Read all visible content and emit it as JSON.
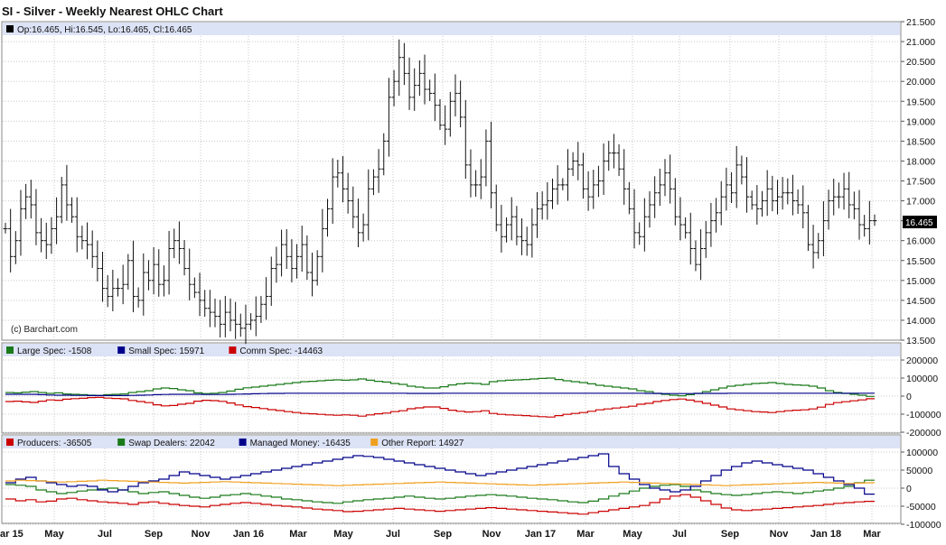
{
  "title": "SI - Silver - Weekly Nearest OHLC Chart",
  "watermark": "(c) Barchart.com",
  "ohlc_legend": "Op:16.465, Hi:16.545, Lo:16.465, Cl:16.465",
  "last_price_label": "16.465",
  "cot_legend": [
    {
      "label": "Large Spec: -1508",
      "color": "#1a7a1a"
    },
    {
      "label": "Small Spec: 15971",
      "color": "#00008b"
    },
    {
      "label": "Comm Spec: -14463",
      "color": "#cc0000"
    }
  ],
  "disagg_legend": [
    {
      "label": "Producers: -36505",
      "color": "#cc0000"
    },
    {
      "label": "Swap Dealers: 22042",
      "color": "#1a7a1a"
    },
    {
      "label": "Managed Money: -16435",
      "color": "#00008b"
    },
    {
      "label": "Other Report: 14927",
      "color": "#f0a020"
    }
  ],
  "x_ticks": [
    "ar 15",
    "May",
    "Jul",
    "Sep",
    "Nov",
    "Jan 16",
    "Mar",
    "May",
    "Jul",
    "Sep",
    "Nov",
    "Jan 17",
    "Mar",
    "May",
    "Jul",
    "Sep",
    "Nov",
    "Jan 18",
    "Mar"
  ],
  "price_ticks": [
    "21.500",
    "21.000",
    "20.500",
    "20.000",
    "19.500",
    "19.000",
    "18.500",
    "18.000",
    "17.500",
    "17.000",
    "16.500",
    "16.000",
    "15.500",
    "15.000",
    "14.500",
    "14.000",
    "13.500"
  ],
  "cot_ticks": [
    "200000",
    "100000",
    "0",
    "-100000",
    "-200000"
  ],
  "disagg_ticks": [
    "100000",
    "50000",
    "0",
    "-50000",
    "-100000"
  ],
  "chart_data": [
    {
      "type": "ohlc",
      "title": "SI - Silver - Weekly Nearest OHLC Chart",
      "x_range": [
        "2015-03",
        "2018-03"
      ],
      "ylim": [
        13.5,
        21.5
      ],
      "close": [
        16.3,
        15.6,
        16.0,
        16.8,
        17.1,
        16.9,
        16.2,
        16.0,
        15.9,
        16.3,
        16.6,
        17.4,
        16.9,
        16.6,
        16.1,
        16.0,
        15.9,
        15.6,
        15.3,
        14.8,
        14.6,
        14.8,
        14.8,
        14.9,
        15.5,
        14.6,
        14.5,
        15.2,
        15.0,
        15.4,
        14.9,
        15.0,
        15.8,
        16.0,
        15.8,
        15.3,
        14.9,
        14.7,
        14.5,
        14.3,
        14.2,
        14.1,
        13.9,
        14.2,
        14.0,
        13.9,
        13.8,
        13.9,
        14.0,
        14.1,
        14.4,
        14.6,
        15.3,
        15.4,
        15.9,
        15.6,
        15.3,
        15.6,
        15.9,
        15.2,
        15.0,
        15.6,
        16.3,
        16.8,
        17.6,
        17.7,
        17.3,
        17.0,
        16.6,
        16.2,
        16.4,
        17.3,
        17.6,
        17.8,
        18.5,
        19.6,
        20.0,
        20.6,
        20.2,
        19.6,
        19.9,
        20.2,
        19.8,
        19.7,
        19.4,
        18.9,
        18.8,
        19.5,
        19.7,
        19.1,
        17.9,
        17.4,
        17.4,
        17.6,
        18.5,
        17.2,
        16.4,
        16.1,
        16.4,
        16.6,
        16.1,
        16.0,
        15.9,
        16.4,
        16.8,
        16.9,
        17.0,
        17.3,
        17.4,
        17.4,
        17.8,
        18.0,
        17.9,
        17.3,
        17.1,
        17.4,
        17.5,
        18.0,
        18.2,
        18.2,
        17.8,
        17.3,
        16.8,
        16.2,
        16.1,
        16.6,
        16.9,
        17.2,
        17.4,
        17.7,
        17.3,
        16.6,
        16.4,
        16.2,
        15.8,
        15.4,
        15.8,
        16.2,
        16.5,
        16.7,
        17.1,
        17.4,
        17.2,
        17.9,
        17.6,
        17.1,
        16.9,
        16.8,
        17.0,
        17.3,
        17.0,
        17.1,
        17.2,
        17.2,
        17.0,
        16.9,
        16.7,
        15.9,
        15.7,
        16.0,
        16.5,
        17.0,
        17.1,
        17.1,
        17.3,
        16.9,
        16.8,
        16.4,
        16.3,
        16.5,
        16.5
      ]
    },
    {
      "type": "line",
      "title": "Commitments of Traders",
      "ylim": [
        -200000,
        200000
      ],
      "series": [
        {
          "name": "Large Spec",
          "color": "#1a7a1a",
          "values": [
            20000,
            18000,
            22000,
            25000,
            20000,
            15000,
            18000,
            12000,
            10000,
            8000,
            5000,
            4000,
            8000,
            10000,
            12000,
            20000,
            25000,
            30000,
            40000,
            45000,
            42000,
            35000,
            30000,
            18000,
            14000,
            16000,
            20000,
            28000,
            38000,
            46000,
            50000,
            55000,
            60000,
            65000,
            70000,
            75000,
            80000,
            82000,
            85000,
            88000,
            90000,
            88000,
            90000,
            95000,
            88000,
            82000,
            78000,
            70000,
            65000,
            55000,
            50000,
            45000,
            45000,
            52000,
            62000,
            68000,
            72000,
            70000,
            65000,
            80000,
            85000,
            88000,
            90000,
            92000,
            95000,
            98000,
            100000,
            92000,
            85000,
            80000,
            75000,
            68000,
            60000,
            55000,
            50000,
            45000,
            40000,
            30000,
            25000,
            15000,
            10000,
            5000,
            2000,
            8000,
            15000,
            25000,
            35000,
            45000,
            55000,
            60000,
            65000,
            70000,
            72000,
            75000,
            70000,
            65000,
            62000,
            60000,
            55000,
            45000,
            30000,
            20000,
            15000,
            10000,
            5000,
            -1508
          ]
        },
        {
          "name": "Small Spec",
          "color": "#00008b",
          "values": [
            10000,
            10000,
            10000,
            10000,
            8000,
            6000,
            5000,
            5000,
            4000,
            4000,
            3000,
            3000,
            3000,
            3000,
            3000,
            4000,
            5000,
            6000,
            8000,
            9000,
            10000,
            10000,
            10000,
            10000,
            9000,
            9000,
            9000,
            10000,
            11000,
            12000,
            13000,
            14000,
            15000,
            15000,
            16000,
            16000,
            16000,
            16000,
            16000,
            16000,
            16000,
            16000,
            16000,
            16000,
            16000,
            16000,
            16000,
            16000,
            16000,
            15000,
            15000,
            15000,
            15000,
            16000,
            16000,
            16000,
            16000,
            16000,
            16000,
            16000,
            16000,
            16000,
            16000,
            16000,
            16000,
            16000,
            16000,
            16000,
            16000,
            16000,
            16000,
            16000,
            16000,
            16000,
            16000,
            16000,
            16000,
            16000,
            15000,
            15000,
            14000,
            14000,
            14000,
            14000,
            15000,
            15000,
            15000,
            15000,
            16000,
            16000,
            16000,
            16000,
            16000,
            16000,
            16000,
            16000,
            16000,
            16000,
            16000,
            16000,
            16000,
            16000,
            16000,
            16000,
            16000,
            15971
          ]
        },
        {
          "name": "Comm Spec",
          "color": "#cc0000",
          "values": [
            -30000,
            -28000,
            -32000,
            -35000,
            -28000,
            -21000,
            -23000,
            -17000,
            -14000,
            -12000,
            -8000,
            -7000,
            -11000,
            -13000,
            -15000,
            -24000,
            -30000,
            -36000,
            -48000,
            -54000,
            -52000,
            -45000,
            -40000,
            -28000,
            -23000,
            -25000,
            -29000,
            -38000,
            -49000,
            -58000,
            -63000,
            -69000,
            -75000,
            -80000,
            -86000,
            -91000,
            -96000,
            -98000,
            -101000,
            -104000,
            -106000,
            -104000,
            -106000,
            -111000,
            -104000,
            -98000,
            -94000,
            -86000,
            -81000,
            -70000,
            -65000,
            -60000,
            -60000,
            -68000,
            -78000,
            -84000,
            -88000,
            -86000,
            -81000,
            -96000,
            -101000,
            -104000,
            -106000,
            -108000,
            -111000,
            -114000,
            -116000,
            -108000,
            -101000,
            -96000,
            -91000,
            -84000,
            -76000,
            -71000,
            -66000,
            -61000,
            -56000,
            -45000,
            -40000,
            -30000,
            -24000,
            -19000,
            -16000,
            -22000,
            -30000,
            -40000,
            -50000,
            -60000,
            -71000,
            -76000,
            -81000,
            -86000,
            -88000,
            -91000,
            -86000,
            -81000,
            -78000,
            -76000,
            -71000,
            -61000,
            -46000,
            -36000,
            -31000,
            -26000,
            -21000,
            -14463
          ]
        }
      ]
    },
    {
      "type": "line",
      "title": "Disaggregated Commitments of Traders",
      "ylim": [
        -100000,
        100000
      ],
      "series": [
        {
          "name": "Producers",
          "color": "#cc0000",
          "values": [
            -30000,
            -35000,
            -32000,
            -38000,
            -36000,
            -30000,
            -28000,
            -32000,
            -35000,
            -38000,
            -40000,
            -42000,
            -45000,
            -40000,
            -38000,
            -42000,
            -45000,
            -48000,
            -50000,
            -52000,
            -48000,
            -45000,
            -42000,
            -40000,
            -42000,
            -45000,
            -48000,
            -50000,
            -52000,
            -55000,
            -58000,
            -60000,
            -62000,
            -65000,
            -64000,
            -62000,
            -60000,
            -58000,
            -56000,
            -58000,
            -60000,
            -62000,
            -64000,
            -62000,
            -60000,
            -58000,
            -56000,
            -54000,
            -56000,
            -58000,
            -60000,
            -62000,
            -64000,
            -66000,
            -68000,
            -70000,
            -72000,
            -68000,
            -64000,
            -60000,
            -56000,
            -52000,
            -48000,
            -40000,
            -30000,
            -22000,
            -18000,
            -25000,
            -35000,
            -45000,
            -55000,
            -60000,
            -62000,
            -60000,
            -58000,
            -56000,
            -54000,
            -52000,
            -50000,
            -48000,
            -45000,
            -42000,
            -40000,
            -38000,
            -36505
          ]
        },
        {
          "name": "Swap Dealers",
          "color": "#1a7a1a",
          "values": [
            10000,
            8000,
            5000,
            -5000,
            -10000,
            -15000,
            -12000,
            -8000,
            -5000,
            -2000,
            0,
            -5000,
            -10000,
            -15000,
            -12000,
            -10000,
            -15000,
            -20000,
            -25000,
            -28000,
            -25000,
            -20000,
            -18000,
            -15000,
            -18000,
            -22000,
            -25000,
            -30000,
            -32000,
            -35000,
            -38000,
            -40000,
            -42000,
            -38000,
            -35000,
            -32000,
            -30000,
            -28000,
            -25000,
            -22000,
            -25000,
            -28000,
            -30000,
            -28000,
            -25000,
            -22000,
            -20000,
            -18000,
            -20000,
            -22000,
            -25000,
            -28000,
            -30000,
            -32000,
            -35000,
            -38000,
            -40000,
            -36000,
            -30000,
            -22000,
            -15000,
            -8000,
            0,
            5000,
            8000,
            10000,
            5000,
            -5000,
            -10000,
            -15000,
            -18000,
            -20000,
            -18000,
            -15000,
            -12000,
            -10000,
            -12000,
            -15000,
            -12000,
            -8000,
            -5000,
            0,
            5000,
            15000,
            22042
          ]
        },
        {
          "name": "Managed Money",
          "color": "#00008b",
          "values": [
            15000,
            25000,
            30000,
            20000,
            15000,
            10000,
            5000,
            8000,
            5000,
            -5000,
            -10000,
            -5000,
            5000,
            15000,
            20000,
            25000,
            35000,
            45000,
            40000,
            35000,
            30000,
            25000,
            30000,
            35000,
            40000,
            45000,
            50000,
            55000,
            60000,
            65000,
            70000,
            75000,
            80000,
            85000,
            90000,
            88000,
            85000,
            80000,
            75000,
            70000,
            65000,
            60000,
            55000,
            50000,
            45000,
            40000,
            35000,
            40000,
            45000,
            50000,
            55000,
            60000,
            65000,
            70000,
            75000,
            80000,
            85000,
            90000,
            95000,
            60000,
            40000,
            25000,
            10000,
            0,
            -5000,
            -10000,
            -5000,
            5000,
            20000,
            35000,
            50000,
            60000,
            70000,
            75000,
            70000,
            65000,
            60000,
            55000,
            50000,
            40000,
            30000,
            20000,
            10000,
            0,
            -16435
          ]
        },
        {
          "name": "Other Report",
          "color": "#f0a020",
          "values": [
            20000,
            22000,
            21000,
            20000,
            18000,
            17000,
            18000,
            19000,
            20000,
            22000,
            21000,
            20000,
            19000,
            18000,
            17000,
            16000,
            15000,
            14000,
            15000,
            16000,
            17000,
            18000,
            17000,
            16000,
            15000,
            14000,
            13000,
            12000,
            11000,
            10000,
            9000,
            8000,
            7000,
            8000,
            9000,
            10000,
            11000,
            12000,
            13000,
            14000,
            15000,
            16000,
            17000,
            16000,
            15000,
            14000,
            13000,
            12000,
            11000,
            10000,
            9000,
            8000,
            9000,
            10000,
            11000,
            12000,
            13000,
            14000,
            15000,
            16000,
            17000,
            16000,
            15000,
            14000,
            13000,
            12000,
            11000,
            10000,
            9000,
            8000,
            7000,
            8000,
            9000,
            10000,
            11000,
            12000,
            13000,
            14000,
            15000,
            16000,
            15000,
            14000,
            13000,
            14000,
            14927
          ]
        }
      ]
    }
  ]
}
